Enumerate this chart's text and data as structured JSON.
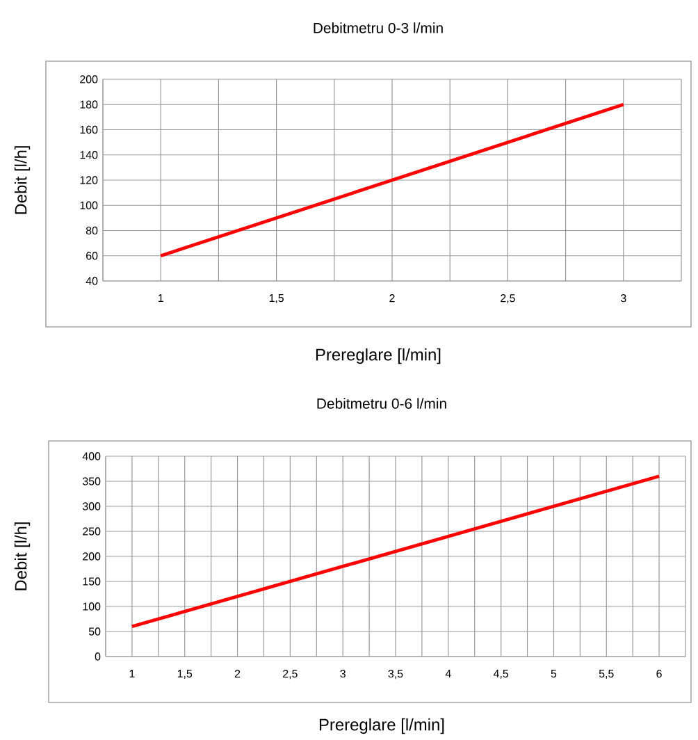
{
  "chart_data": [
    {
      "type": "line",
      "title": "Debitmetru 0-3 l/min",
      "xlabel": "Prereglare [l/min]",
      "ylabel": "Debit [l/h]",
      "x": [
        1,
        3
      ],
      "series": [
        {
          "color": "#ff0000",
          "values": [
            60,
            180
          ]
        }
      ],
      "xlim": [
        0.75,
        3.25
      ],
      "ylim": [
        40,
        200
      ],
      "xticks": [
        {
          "value": 0.75,
          "label": null
        },
        1,
        {
          "value": 1.25,
          "label": null
        },
        {
          "value": 1.5,
          "label": "1,5"
        },
        {
          "value": 1.75,
          "label": null
        },
        2,
        {
          "value": 2.25,
          "label": null
        },
        {
          "value": 2.5,
          "label": "2,5"
        },
        {
          "value": 2.75,
          "label": null
        },
        3,
        {
          "value": 3.25,
          "label": null
        }
      ],
      "yticks": [
        40,
        60,
        80,
        100,
        120,
        140,
        160,
        180,
        200
      ],
      "grid": true
    },
    {
      "type": "line",
      "title": "Debitmetru 0-6 l/min",
      "xlabel": "Prereglare [l/min]",
      "ylabel": "Debit [l/h]",
      "x": [
        1,
        6
      ],
      "series": [
        {
          "color": "#ff0000",
          "values": [
            60,
            360
          ]
        }
      ],
      "xlim": [
        0.75,
        6.25
      ],
      "ylim": [
        0,
        400
      ],
      "xticks": [
        {
          "value": 0.75,
          "label": null
        },
        1,
        {
          "value": 1.25,
          "label": null
        },
        {
          "value": 1.5,
          "label": "1,5"
        },
        {
          "value": 1.75,
          "label": null
        },
        2,
        {
          "value": 2.25,
          "label": null
        },
        {
          "value": 2.5,
          "label": "2,5"
        },
        {
          "value": 2.75,
          "label": null
        },
        3,
        {
          "value": 3.25,
          "label": null
        },
        {
          "value": 3.5,
          "label": "3,5"
        },
        {
          "value": 3.75,
          "label": null
        },
        4,
        {
          "value": 4.25,
          "label": null
        },
        {
          "value": 4.5,
          "label": "4,5"
        },
        {
          "value": 4.75,
          "label": null
        },
        5,
        {
          "value": 5.25,
          "label": null
        },
        {
          "value": 5.5,
          "label": "5,5"
        },
        {
          "value": 5.75,
          "label": null
        },
        6,
        {
          "value": 6.25,
          "label": null
        }
      ],
      "yticks": [
        0,
        50,
        100,
        150,
        200,
        250,
        300,
        350,
        400
      ],
      "grid": true
    }
  ]
}
